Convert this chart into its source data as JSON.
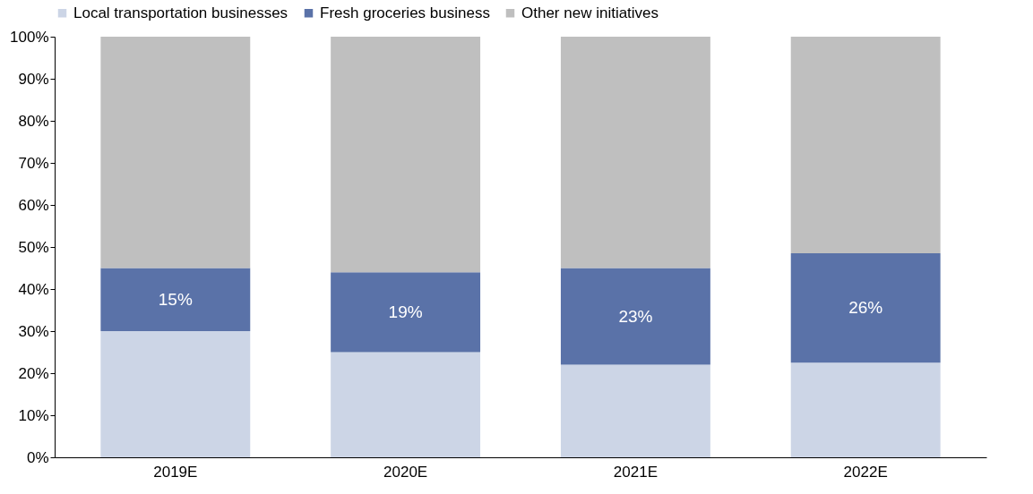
{
  "chart_data": {
    "type": "bar",
    "stacked": true,
    "categories": [
      "2019E",
      "2020E",
      "2021E",
      "2022E"
    ],
    "series": [
      {
        "name": "Local transportation businesses",
        "color": "#ccd5e6",
        "values": [
          30,
          25,
          22,
          22.5
        ]
      },
      {
        "name": "Fresh groceries business",
        "color": "#5a72a8",
        "values": [
          15,
          19,
          23,
          26
        ],
        "value_labels": [
          "15%",
          "19%",
          "23%",
          "26%"
        ]
      },
      {
        "name": "Other new initiatives",
        "color": "#bfbfbf",
        "values": [
          55,
          56,
          55,
          51.5
        ]
      }
    ],
    "ylim": [
      0,
      100
    ],
    "yticks": [
      {
        "value": 0,
        "label": "0%"
      },
      {
        "value": 10,
        "label": "10%"
      },
      {
        "value": 20,
        "label": "20%"
      },
      {
        "value": 30,
        "label": "30%"
      },
      {
        "value": 40,
        "label": "40%"
      },
      {
        "value": 50,
        "label": "50%"
      },
      {
        "value": 60,
        "label": "60%"
      },
      {
        "value": 70,
        "label": "70%"
      },
      {
        "value": 80,
        "label": "80%"
      },
      {
        "value": 90,
        "label": "90%"
      },
      {
        "value": 100,
        "label": "100%"
      }
    ],
    "grid": false,
    "legend": "top"
  }
}
